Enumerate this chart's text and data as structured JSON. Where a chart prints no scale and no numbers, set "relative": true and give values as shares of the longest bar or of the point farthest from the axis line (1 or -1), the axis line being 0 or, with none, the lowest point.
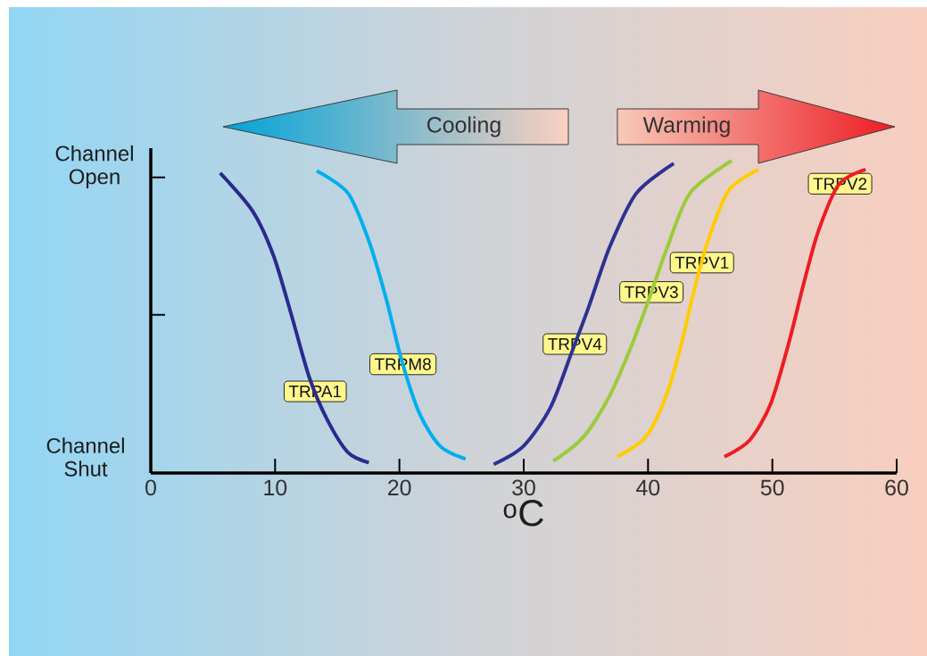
{
  "chart_data": {
    "type": "line",
    "relative": true,
    "xlabel": "$^{o}$C",
    "xlim": [
      0,
      60
    ],
    "xticks": [
      0,
      10,
      20,
      30,
      40,
      50,
      60
    ],
    "line_style": "solid",
    "annotations": [
      "Cooling",
      "Warming",
      "Channel Open",
      "Channel Shut"
    ],
    "series": [
      {
        "name": "TRPA1",
        "color": "#2b2a8c",
        "x": [
          5.58,
          8.2,
          9.88,
          11.32,
          12.76,
          14.19,
          15.86,
          17.54
        ],
        "values": [
          0.96,
          0.838,
          0.695,
          0.505,
          0.305,
          0.171,
          0.066,
          0.033
        ]
      },
      {
        "name": "TRPM8",
        "color": "#00aeef",
        "x": [
          13.35,
          15.86,
          17.54,
          18.97,
          20.17,
          21.61,
          23.28,
          25.32
        ],
        "values": [
          0.967,
          0.896,
          0.743,
          0.553,
          0.362,
          0.191,
          0.086,
          0.045
        ]
      },
      {
        "name": "TRPV4",
        "color": "#2e3192",
        "x": [
          27.59,
          29.98,
          32.14,
          33.81,
          35.25,
          36.92,
          39.07,
          42.07
        ],
        "values": [
          0.028,
          0.086,
          0.209,
          0.381,
          0.534,
          0.724,
          0.896,
          0.991
        ]
      },
      {
        "name": "TRPV3",
        "color": "#9ccb3b",
        "x": [
          32.38,
          34.77,
          36.92,
          38.6,
          40.04,
          41.47,
          43.38,
          46.73
        ],
        "values": [
          0.038,
          0.114,
          0.248,
          0.4,
          0.553,
          0.714,
          0.896,
          1
        ]
      },
      {
        "name": "TRPV1",
        "color": "#ffcc00",
        "x": [
          37.52,
          39.79,
          41.47,
          42.66,
          43.62,
          44.82,
          46.49,
          48.89
        ],
        "values": [
          0.052,
          0.114,
          0.248,
          0.41,
          0.571,
          0.743,
          0.905,
          0.972
        ]
      },
      {
        "name": "TRPV2",
        "color": "#ed1c24",
        "x": [
          46.14,
          48.17,
          49.84,
          51.28,
          52.48,
          53.68,
          55.35,
          57.5
        ],
        "values": [
          0.052,
          0.105,
          0.219,
          0.41,
          0.6,
          0.772,
          0.924,
          0.972
        ]
      }
    ]
  }
}
